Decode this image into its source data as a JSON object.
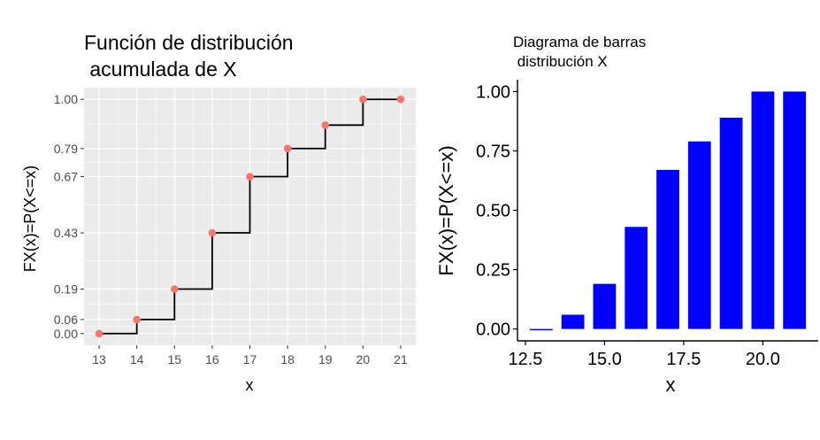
{
  "chart_data": [
    {
      "type": "line",
      "step": true,
      "title_lines": [
        "Función de distribución",
        " acumulada de X"
      ],
      "xlabel": "x",
      "ylabel": "FX(x)=P(X<=x)",
      "x": [
        13,
        14,
        15,
        16,
        17,
        18,
        19,
        20,
        21
      ],
      "y": [
        0.0,
        0.06,
        0.19,
        0.43,
        0.67,
        0.79,
        0.89,
        1.0,
        1.0
      ],
      "xticks": [
        "13",
        "14",
        "15",
        "16",
        "17",
        "18",
        "19",
        "20",
        "21"
      ],
      "yticks": [
        0.0,
        0.06,
        0.19,
        0.43,
        0.67,
        0.79,
        1.0
      ],
      "ytick_labels": [
        "0.00",
        "0.06",
        "0.19",
        "0.43",
        "0.67",
        "0.79",
        "1.00"
      ],
      "xlim": [
        12.6,
        21.4
      ],
      "ylim": [
        -0.05,
        1.05
      ],
      "grid": true,
      "background": "#ebebeb",
      "step_color": "#000000",
      "point_color": "#f8766d"
    },
    {
      "type": "bar",
      "title_lines": [
        "Diagrama de barras",
        " distribución X"
      ],
      "xlabel": "x",
      "ylabel": "FX(x)=P(X<=x)",
      "x": [
        13,
        14,
        15,
        16,
        17,
        18,
        19,
        20,
        21
      ],
      "values": [
        0.0,
        0.06,
        0.19,
        0.43,
        0.67,
        0.79,
        0.89,
        1.0,
        1.0
      ],
      "xticks": [
        12.5,
        15.0,
        17.5,
        20.0
      ],
      "xtick_labels": [
        "12.5",
        "15.0",
        "17.5",
        "20.0"
      ],
      "yticks": [
        0.0,
        0.25,
        0.5,
        0.75,
        1.0
      ],
      "ytick_labels": [
        "0.00",
        "0.25",
        "0.50",
        "0.75",
        "1.00"
      ],
      "xlim": [
        12.25,
        21.75
      ],
      "ylim": [
        -0.05,
        1.05
      ],
      "grid": false,
      "bar_color": "#0000ff"
    }
  ]
}
